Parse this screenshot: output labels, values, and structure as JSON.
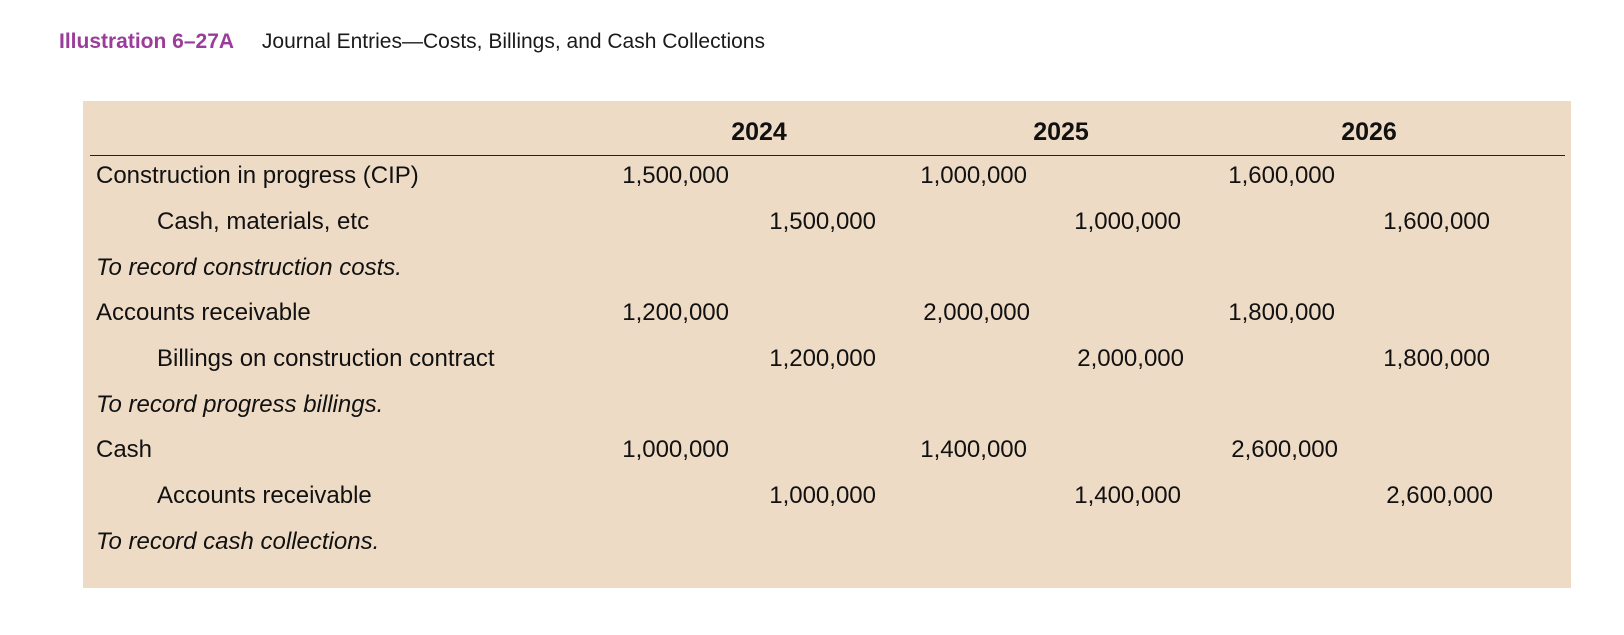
{
  "caption": {
    "label": "Illustration 6–27A",
    "title": "Journal Entries—Costs, Billings, and Cash Collections"
  },
  "years": [
    "2024",
    "2025",
    "2026"
  ],
  "entries": [
    {
      "debit_account": "Construction in progress (CIP)",
      "credit_account": "Cash, materials, etc",
      "memo": "To record construction costs.",
      "debits": [
        "1,500,000",
        "1,000,000",
        "1,600,000"
      ],
      "credits": [
        "1,500,000",
        "1,000,000",
        "1,600,000"
      ]
    },
    {
      "debit_account": "Accounts receivable",
      "credit_account": "Billings on construction contract",
      "memo": "To record progress billings.",
      "debits": [
        "1,200,000",
        "2,000,000",
        "1,800,000"
      ],
      "credits": [
        "1,200,000",
        "2,000,000",
        "1,800,000"
      ]
    },
    {
      "debit_account": "Cash",
      "credit_account": "Accounts receivable",
      "memo": "To record cash collections.",
      "debits": [
        "1,000,000",
        "1,400,000",
        "2,600,000"
      ],
      "credits": [
        "1,000,000",
        "1,400,000",
        "2,600,000"
      ]
    }
  ],
  "colors": {
    "caption_label": "#9b3c9a",
    "panel_background": "#eedbc6"
  }
}
